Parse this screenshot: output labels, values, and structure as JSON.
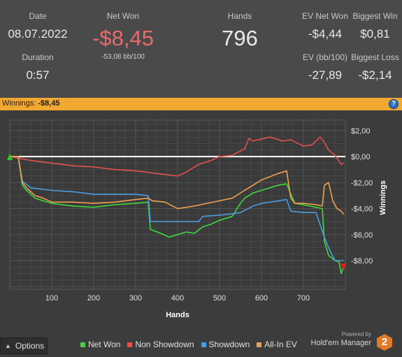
{
  "stats": {
    "date": {
      "label": "Date",
      "value": "08.07.2022"
    },
    "duration": {
      "label": "Duration",
      "value": "0:57"
    },
    "net_won": {
      "label": "Net Won",
      "value": "-$8,45",
      "sub": "-53,08 bb/100",
      "color": "#e86b6b"
    },
    "hands": {
      "label": "Hands",
      "value": "796"
    },
    "ev_net_won": {
      "label": "EV Net Won",
      "value": "-$4,44"
    },
    "biggest_win": {
      "label": "Biggest Win",
      "value": "$0,81"
    },
    "ev_bb100": {
      "label": "EV (bb/100)",
      "value": "-27,89"
    },
    "biggest_loss": {
      "label": "Biggest Loss",
      "value": "-$2,14"
    }
  },
  "winbar": {
    "label": "Winnings:",
    "value": "-$8,45",
    "color": "#f0a830",
    "help_icon": "question-icon"
  },
  "footer": {
    "options_label": "Options",
    "options_icon": "chevron-up-icon",
    "powered_by": "Powered by",
    "brand": "Hold'em Manager",
    "brand_logo_text": "2"
  },
  "chart_data": {
    "type": "line",
    "xlabel": "Hands",
    "ylabel": "Winnings",
    "xlim": [
      0,
      800
    ],
    "ylim": [
      -10.2,
      2.8
    ],
    "x_ticks": [
      100,
      200,
      300,
      400,
      500,
      600,
      700
    ],
    "y_ticks": [
      2,
      0,
      -2,
      -4,
      -6,
      -8
    ],
    "y_tick_labels": [
      "$2,00",
      "$0,00",
      "-$2,00",
      "-$4,00",
      "-$6,00",
      "-$8,00"
    ],
    "x_tick_labels": [
      "100",
      "200",
      "300",
      "400",
      "500",
      "600",
      "700"
    ],
    "grid": true,
    "legend": "bottom",
    "series": [
      {
        "name": "Net Won",
        "color": "#3cd83c",
        "points": [
          [
            0,
            0
          ],
          [
            20,
            0
          ],
          [
            30,
            -2.2
          ],
          [
            40,
            -2.6
          ],
          [
            60,
            -3.2
          ],
          [
            80,
            -3.4
          ],
          [
            100,
            -3.6
          ],
          [
            150,
            -3.8
          ],
          [
            200,
            -3.9
          ],
          [
            250,
            -3.7
          ],
          [
            300,
            -3.6
          ],
          [
            330,
            -3.5
          ],
          [
            335,
            -5.6
          ],
          [
            360,
            -5.9
          ],
          [
            380,
            -6.2
          ],
          [
            400,
            -6.0
          ],
          [
            420,
            -5.8
          ],
          [
            440,
            -5.9
          ],
          [
            460,
            -5.4
          ],
          [
            480,
            -5.2
          ],
          [
            500,
            -4.9
          ],
          [
            530,
            -4.6
          ],
          [
            550,
            -3.6
          ],
          [
            560,
            -3.2
          ],
          [
            580,
            -2.8
          ],
          [
            600,
            -2.6
          ],
          [
            620,
            -2.4
          ],
          [
            640,
            -2.2
          ],
          [
            660,
            -2.1
          ],
          [
            670,
            -2.9
          ],
          [
            680,
            -3.6
          ],
          [
            700,
            -3.7
          ],
          [
            730,
            -3.9
          ],
          [
            745,
            -4.0
          ],
          [
            750,
            -6.5
          ],
          [
            760,
            -7.6
          ],
          [
            775,
            -8.0
          ],
          [
            785,
            -8.1
          ],
          [
            790,
            -9.0
          ],
          [
            796,
            -8.45
          ]
        ]
      },
      {
        "name": "Non Showdown",
        "color": "#e05252",
        "points": [
          [
            0,
            0
          ],
          [
            50,
            -0.3
          ],
          [
            100,
            -0.5
          ],
          [
            150,
            -0.7
          ],
          [
            200,
            -0.8
          ],
          [
            250,
            -1.0
          ],
          [
            300,
            -1.1
          ],
          [
            350,
            -1.3
          ],
          [
            400,
            -1.5
          ],
          [
            420,
            -1.2
          ],
          [
            450,
            -0.6
          ],
          [
            480,
            -0.3
          ],
          [
            500,
            0.0
          ],
          [
            530,
            0.1
          ],
          [
            560,
            0.6
          ],
          [
            570,
            1.4
          ],
          [
            580,
            1.2
          ],
          [
            620,
            1.5
          ],
          [
            650,
            1.2
          ],
          [
            670,
            1.3
          ],
          [
            700,
            0.8
          ],
          [
            720,
            0.9
          ],
          [
            740,
            1.5
          ],
          [
            750,
            1.1
          ],
          [
            760,
            0.5
          ],
          [
            775,
            0.1
          ],
          [
            790,
            -0.6
          ],
          [
            796,
            -0.5
          ]
        ]
      },
      {
        "name": "Showdown",
        "color": "#4a9de0",
        "points": [
          [
            0,
            0
          ],
          [
            20,
            0
          ],
          [
            30,
            -1.9
          ],
          [
            50,
            -2.4
          ],
          [
            100,
            -2.6
          ],
          [
            150,
            -2.7
          ],
          [
            200,
            -2.9
          ],
          [
            250,
            -2.9
          ],
          [
            300,
            -2.9
          ],
          [
            330,
            -3.0
          ],
          [
            335,
            -5.0
          ],
          [
            360,
            -5.0
          ],
          [
            400,
            -5.0
          ],
          [
            450,
            -5.0
          ],
          [
            460,
            -4.6
          ],
          [
            500,
            -4.5
          ],
          [
            530,
            -4.4
          ],
          [
            550,
            -4.3
          ],
          [
            580,
            -3.8
          ],
          [
            600,
            -3.6
          ],
          [
            640,
            -3.4
          ],
          [
            660,
            -3.3
          ],
          [
            670,
            -4.2
          ],
          [
            700,
            -4.3
          ],
          [
            730,
            -4.3
          ],
          [
            750,
            -6.2
          ],
          [
            760,
            -7.0
          ],
          [
            775,
            -8.0
          ],
          [
            796,
            -8.0
          ]
        ]
      },
      {
        "name": "All-In EV",
        "color": "#f0a050",
        "points": [
          [
            0,
            0
          ],
          [
            20,
            0
          ],
          [
            30,
            -2.0
          ],
          [
            40,
            -2.4
          ],
          [
            60,
            -3.0
          ],
          [
            80,
            -3.2
          ],
          [
            100,
            -3.5
          ],
          [
            150,
            -3.5
          ],
          [
            200,
            -3.6
          ],
          [
            250,
            -3.5
          ],
          [
            300,
            -3.3
          ],
          [
            330,
            -3.2
          ],
          [
            340,
            -3.4
          ],
          [
            370,
            -3.5
          ],
          [
            400,
            -4.0
          ],
          [
            440,
            -3.8
          ],
          [
            470,
            -3.6
          ],
          [
            500,
            -3.4
          ],
          [
            530,
            -3.2
          ],
          [
            560,
            -2.6
          ],
          [
            580,
            -2.2
          ],
          [
            600,
            -1.8
          ],
          [
            640,
            -1.3
          ],
          [
            660,
            -1.1
          ],
          [
            670,
            -3.2
          ],
          [
            680,
            -3.6
          ],
          [
            700,
            -3.6
          ],
          [
            730,
            -3.7
          ],
          [
            745,
            -3.8
          ],
          [
            750,
            -2.2
          ],
          [
            760,
            -2.0
          ],
          [
            770,
            -3.4
          ],
          [
            780,
            -4.0
          ],
          [
            790,
            -4.2
          ],
          [
            796,
            -4.44
          ]
        ]
      }
    ]
  }
}
